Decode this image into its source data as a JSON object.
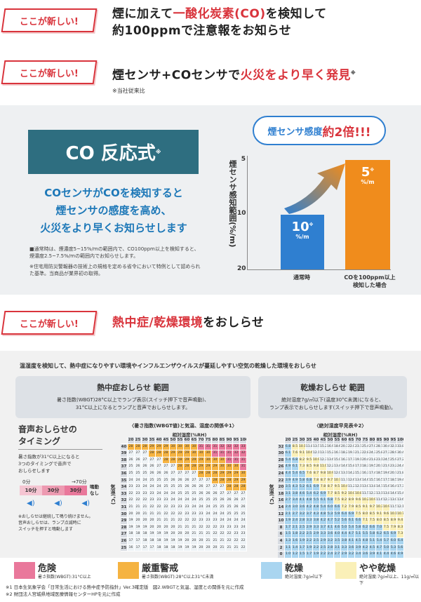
{
  "sections": [
    {
      "tag": "ここが新しい!",
      "title_pre": "煙に加えて",
      "title_red": "一酸化炭素(CO)",
      "title_post": "を検知して",
      "title_line2": "約100ppmで注意報をお知らせ"
    },
    {
      "tag": "ここが新しい!",
      "title_pre": "煙センサ+COセンサで",
      "title_red": "火災をより早く発見",
      "title_mark": "※",
      "footnote": "※当社従来比"
    },
    {
      "tag": "ここが新しい!",
      "title_red": "熱中症/乾燥環境",
      "title_post": "をおしらせ"
    }
  ],
  "co": {
    "box_label": "CO 反応式",
    "box_mark": "※",
    "desc_lines": [
      "COセンサがCOを検知すると",
      "煙センサの感度を高め、",
      "火災をより早くお知らせします"
    ],
    "note1": "■通常時は、煙濃度5~15%/mの範囲内で、CO100ppm以上を検知すると、煙濃度2.5~7.5%/mの範囲内でお知らせします。",
    "note2": "※住宅用防災警報器の技術上の規格を定める省令において特例として認められた基準。当商品が業界初の取得。"
  },
  "chart_data": {
    "type": "bar",
    "title": "煙センサ感度約2倍!!!",
    "title_pre": "煙センサ感度",
    "title_em": "約2倍!!!",
    "ylabel": "煙センサ感知範囲(%/m)",
    "y_ticks": [
      "5",
      "10",
      "20"
    ],
    "categories": [
      "通常時",
      "COを100ppm以上検知した場合"
    ],
    "category_lines": [
      [
        "通常時"
      ],
      [
        "COを100ppm以上",
        "検知した場合"
      ]
    ],
    "values": [
      10,
      5
    ],
    "value_labels": [
      "10",
      "5"
    ],
    "unit": "%/m",
    "mark": "※",
    "colors": [
      "#2f7fd0",
      "#f08c1c"
    ]
  },
  "env": {
    "intro": "温湿度を検知して、熱中症になりやすい環境やインフルエンザウイルスが蔓延しやすい空気の乾燥した環境をおしらせ",
    "heat": {
      "title": "熱中症おしらせ 範囲",
      "desc1": "暑さ指数(WBGT)28°C以上でランプ表示(スイッチ押下で音声鳴動)、",
      "desc2": "31°C以上になるとランプと音声でおしらせします。",
      "table_title": "〈暑さ指数(WBGT値)と気温、湿度の関係※1〉",
      "table_sub": "相対湿度(%RH)",
      "yaxis": "気温(°C)"
    },
    "dry": {
      "title": "乾燥おしらせ 範囲",
      "desc1": "絶対湿度7g/㎥以下(温度30°C未満)になると、",
      "desc2": "ランプ表示でおしらせします(スイッチ押下で音声鳴動)。",
      "table_title": "〈絶対湿度早見表※2〉",
      "table_sub": "相対湿度(%RH)",
      "yaxis": "気温(°C)"
    },
    "voice": {
      "title1": "音声おしらせの",
      "title2": "タイミング",
      "desc": [
        "暑さ指数が31°C以上になると",
        "3つのタイミングで音声で",
        "おしらせします"
      ],
      "t0": "0分",
      "t70": "→70分",
      "steps": [
        "10分",
        "30分",
        "30分"
      ],
      "stop1": "鳴動",
      "stop2": "なし",
      "note": [
        "※おしらせは継続して鳴り続けません。",
        "音声おしらせは、ランプ点滅時に",
        "スイッチを押すと鳴動します"
      ]
    },
    "humidity_cols": [
      "20",
      "25",
      "30",
      "35",
      "40",
      "45",
      "50",
      "55",
      "60",
      "65",
      "70",
      "75",
      "80",
      "85",
      "90",
      "95",
      "100"
    ],
    "heat_temps": [
      "40",
      "39",
      "38",
      "37",
      "36",
      "35",
      "34",
      "33",
      "32",
      "31",
      "30",
      "29",
      "28",
      "27",
      "26",
      "25"
    ],
    "dry_temps": [
      "32",
      "30",
      "28",
      "26",
      "24",
      "22",
      "20",
      "18",
      "16",
      "14",
      "12",
      "10",
      "8",
      "6",
      "4",
      "2",
      "0"
    ],
    "legend": [
      {
        "name": "危険",
        "sub": "暑さ指数(WBGT):31°C以上",
        "color": "#e9789b"
      },
      {
        "name": "厳重警戒",
        "sub": "暑さ指数(WBGT):28°C以上31°C未満",
        "color": "#f5b341"
      },
      {
        "name": "乾燥",
        "sub": "絶対湿度:7g/㎥以下",
        "color": "#a9d5f0"
      },
      {
        "name": "やや乾燥",
        "sub": "絶対湿度:7g/㎥以上、11g/㎥以下",
        "color": "#faf0b8"
      }
    ],
    "footnotes": [
      "※1 日本生気象学会「日常生活における熱中症予防指針」Ver.3確定版　図2.WBGTと気温、湿度との関係を元に作成",
      "※2 財団法人宮城県地域医療情報センターHPを元に作成"
    ]
  }
}
